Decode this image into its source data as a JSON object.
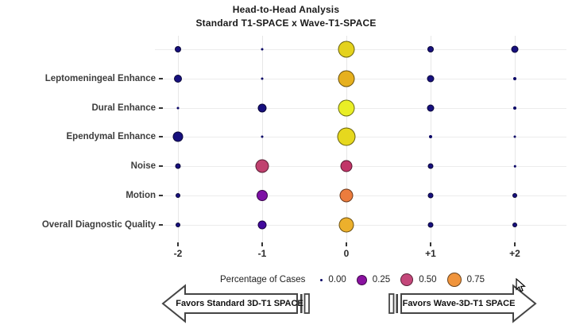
{
  "title": "Head-to-Head Analysis",
  "subtitle": "Standard T1-SPACE x Wave-T1-SPACE",
  "annotations": {
    "left_arrow_label": "Favors Standard 3D-T1 SPACE",
    "right_arrow_label": "Favors Wave-3D-T1 SPACE"
  },
  "chart_data": {
    "type": "bubble",
    "title": "Head-to-Head Analysis",
    "subtitle": "Standard T1-SPACE x Wave-T1-SPACE",
    "x_ticks": [
      "-2",
      "-1",
      "0",
      "+1",
      "+2"
    ],
    "categories": [
      "",
      "Leptomeningeal Enhance",
      "Dural Enhance",
      "Ependymal Enhance",
      "Noise",
      "Motion",
      "Overall Diagnostic Quality"
    ],
    "grid": true,
    "colors": {
      "navy_low_pct": "#17107e",
      "tiny_zero_pct": "#0a0666",
      "outline": "rgba(0,0,0,0.55)"
    },
    "legend": {
      "title": "Percentage of Cases",
      "position": "bottom-center",
      "items": [
        {
          "label": "0.00",
          "color": "#0a0666",
          "diameter": 3
        },
        {
          "label": "0.25",
          "color": "#8a11a0",
          "diameter": 13
        },
        {
          "label": "0.50",
          "color": "#c4477a",
          "diameter": 16
        },
        {
          "label": "0.75",
          "color": "#f0943c",
          "diameter": 18
        }
      ]
    },
    "points": [
      {
        "category_index": 0,
        "x": "-2",
        "pct": 0.07,
        "diameter": 8,
        "color": "#17107e"
      },
      {
        "category_index": 0,
        "x": "-1",
        "pct": 0.0,
        "diameter": 3,
        "color": "#0a0666"
      },
      {
        "category_index": 0,
        "x": "0",
        "pct": 0.87,
        "diameter": 21,
        "color": "#e4d21d"
      },
      {
        "category_index": 0,
        "x": "+1",
        "pct": 0.07,
        "diameter": 8,
        "color": "#17107e"
      },
      {
        "category_index": 0,
        "x": "+2",
        "pct": 0.08,
        "diameter": 9,
        "color": "#17107e"
      },
      {
        "category_index": 1,
        "x": "-2",
        "pct": 0.1,
        "diameter": 10,
        "color": "#17107e"
      },
      {
        "category_index": 1,
        "x": "-1",
        "pct": 0.0,
        "diameter": 3,
        "color": "#0a0666"
      },
      {
        "category_index": 1,
        "x": "0",
        "pct": 0.82,
        "diameter": 21,
        "color": "#e6b01e"
      },
      {
        "category_index": 1,
        "x": "+1",
        "pct": 0.08,
        "diameter": 9,
        "color": "#17107e"
      },
      {
        "category_index": 1,
        "x": "+2",
        "pct": 0.01,
        "diameter": 4,
        "color": "#0a0666"
      },
      {
        "category_index": 2,
        "x": "-2",
        "pct": 0.0,
        "diameter": 3,
        "color": "#0a0666"
      },
      {
        "category_index": 2,
        "x": "-1",
        "pct": 0.12,
        "diameter": 11,
        "color": "#17107e"
      },
      {
        "category_index": 2,
        "x": "0",
        "pct": 0.93,
        "diameter": 21,
        "color": "#e9ee26"
      },
      {
        "category_index": 2,
        "x": "+1",
        "pct": 0.08,
        "diameter": 9,
        "color": "#17107e"
      },
      {
        "category_index": 2,
        "x": "+2",
        "pct": 0.01,
        "diameter": 4,
        "color": "#0a0666"
      },
      {
        "category_index": 3,
        "x": "-2",
        "pct": 0.17,
        "diameter": 13,
        "color": "#17107e"
      },
      {
        "category_index": 3,
        "x": "-1",
        "pct": 0.0,
        "diameter": 3,
        "color": "#0a0666"
      },
      {
        "category_index": 3,
        "x": "0",
        "pct": 0.9,
        "diameter": 23,
        "color": "#e6d81e"
      },
      {
        "category_index": 3,
        "x": "+1",
        "pct": 0.01,
        "diameter": 4,
        "color": "#0a0666"
      },
      {
        "category_index": 3,
        "x": "+2",
        "pct": 0.0,
        "diameter": 3,
        "color": "#0a0666"
      },
      {
        "category_index": 4,
        "x": "-2",
        "pct": 0.05,
        "diameter": 7,
        "color": "#17107e"
      },
      {
        "category_index": 4,
        "x": "-1",
        "pct": 0.5,
        "diameter": 17,
        "color": "#c0416f"
      },
      {
        "category_index": 4,
        "x": "0",
        "pct": 0.44,
        "diameter": 15,
        "color": "#c13568"
      },
      {
        "category_index": 4,
        "x": "+1",
        "pct": 0.05,
        "diameter": 7,
        "color": "#17107e"
      },
      {
        "category_index": 4,
        "x": "+2",
        "pct": 0.0,
        "diameter": 2.5,
        "color": "#0a0666"
      },
      {
        "category_index": 5,
        "x": "-2",
        "pct": 0.04,
        "diameter": 6,
        "color": "#17107e"
      },
      {
        "category_index": 5,
        "x": "-1",
        "pct": 0.25,
        "diameter": 14,
        "color": "#7d10a5"
      },
      {
        "category_index": 5,
        "x": "0",
        "pct": 0.65,
        "diameter": 17,
        "color": "#ec7c3d"
      },
      {
        "category_index": 5,
        "x": "+1",
        "pct": 0.05,
        "diameter": 7,
        "color": "#17107e"
      },
      {
        "category_index": 5,
        "x": "+2",
        "pct": 0.04,
        "diameter": 6,
        "color": "#17107e"
      },
      {
        "category_index": 6,
        "x": "-2",
        "pct": 0.04,
        "diameter": 6,
        "color": "#17107e"
      },
      {
        "category_index": 6,
        "x": "-1",
        "pct": 0.15,
        "diameter": 11,
        "color": "#41099c"
      },
      {
        "category_index": 6,
        "x": "0",
        "pct": 0.78,
        "diameter": 19,
        "color": "#ecb02c"
      },
      {
        "category_index": 6,
        "x": "+1",
        "pct": 0.05,
        "diameter": 7,
        "color": "#17107e"
      },
      {
        "category_index": 6,
        "x": "+2",
        "pct": 0.04,
        "diameter": 6,
        "color": "#17107e"
      }
    ]
  }
}
